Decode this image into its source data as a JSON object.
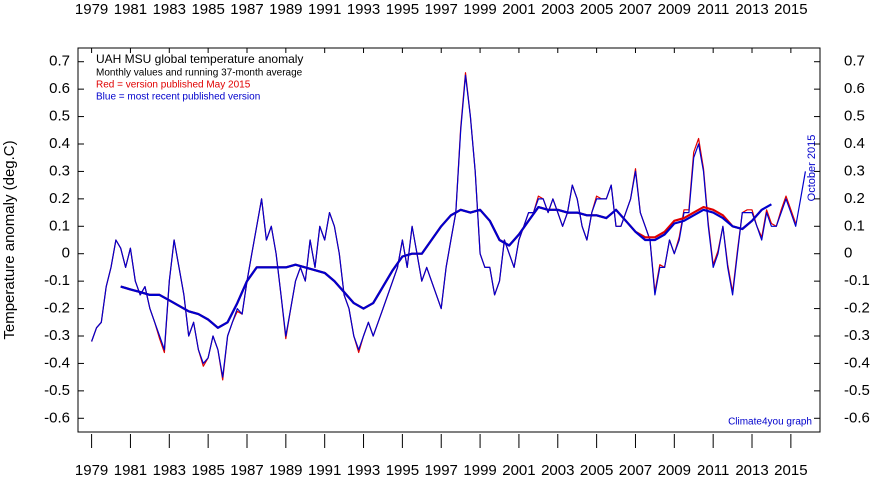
{
  "chart_data": {
    "type": "line",
    "title": "UAH MSU global temperature anomaly",
    "subtitle": "Monthly values and running 37-month average",
    "legend_lines": [
      {
        "text": "Red = version published May 2015",
        "color": "#e00000"
      },
      {
        "text": "Blue = most recent published version",
        "color": "#0000cc"
      }
    ],
    "y_label": "Temperature anomaly (deg.C)",
    "annotations": [
      "October 2015",
      "Climate4you graph"
    ],
    "xlim": [
      1978.3,
      2016.5
    ],
    "xticks": [
      1979,
      1981,
      1983,
      1985,
      1987,
      1989,
      1991,
      1993,
      1995,
      1997,
      1999,
      2001,
      2003,
      2005,
      2007,
      2009,
      2011,
      2013,
      2015
    ],
    "ylim": [
      -0.65,
      0.75
    ],
    "yticks": [
      -0.6,
      -0.5,
      -0.4,
      -0.3,
      -0.2,
      -0.1,
      0,
      0.1,
      0.2,
      0.3,
      0.4,
      0.5,
      0.6,
      0.7
    ],
    "series": [
      {
        "color": "#e00000",
        "width": 1.2,
        "x": [
          1979.0,
          1979.25,
          1979.5,
          1979.75,
          1980.0,
          1980.25,
          1980.5,
          1980.75,
          1981.0,
          1981.25,
          1981.5,
          1981.75,
          1982.0,
          1982.25,
          1982.5,
          1982.75,
          1983.0,
          1983.25,
          1983.5,
          1983.75,
          1984.0,
          1984.25,
          1984.5,
          1984.75,
          1985.0,
          1985.25,
          1985.5,
          1985.75,
          1986.0,
          1986.25,
          1986.5,
          1986.75,
          1987.0,
          1987.25,
          1987.5,
          1987.75,
          1988.0,
          1988.25,
          1988.5,
          1988.75,
          1989.0,
          1989.25,
          1989.5,
          1989.75,
          1990.0,
          1990.25,
          1990.5,
          1990.75,
          1991.0,
          1991.25,
          1991.5,
          1991.75,
          1992.0,
          1992.25,
          1992.5,
          1992.75,
          1993.0,
          1993.25,
          1993.5,
          1993.75,
          1994.0,
          1994.25,
          1994.5,
          1994.75,
          1995.0,
          1995.25,
          1995.5,
          1995.75,
          1996.0,
          1996.25,
          1996.5,
          1996.75,
          1997.0,
          1997.25,
          1997.5,
          1997.75,
          1998.0,
          1998.25,
          1998.5,
          1998.75,
          1999.0,
          1999.25,
          1999.5,
          1999.75,
          2000.0,
          2000.25,
          2000.5,
          2000.75,
          2001.0,
          2001.25,
          2001.5,
          2001.75,
          2002.0,
          2002.25,
          2002.5,
          2002.75,
          2003.0,
          2003.25,
          2003.5,
          2003.75,
          2004.0,
          2004.25,
          2004.5,
          2004.75,
          2005.0,
          2005.25,
          2005.5,
          2005.75,
          2006.0,
          2006.25,
          2006.5,
          2006.75,
          2007.0,
          2007.25,
          2007.5,
          2007.75,
          2008.0,
          2008.25,
          2008.5,
          2008.75,
          2009.0,
          2009.25,
          2009.5,
          2009.75,
          2010.0,
          2010.25,
          2010.5,
          2010.75,
          2011.0,
          2011.25,
          2011.5,
          2011.75,
          2012.0,
          2012.25,
          2012.5,
          2012.75,
          2013.0,
          2013.25,
          2013.5,
          2013.75,
          2014.0,
          2014.25,
          2014.5,
          2014.75,
          2015.0,
          2015.25
        ],
        "values": [
          -0.32,
          -0.27,
          -0.25,
          -0.12,
          -0.05,
          0.05,
          0.02,
          -0.05,
          0.02,
          -0.1,
          -0.15,
          -0.12,
          -0.2,
          -0.25,
          -0.31,
          -0.36,
          -0.1,
          0.05,
          -0.05,
          -0.15,
          -0.3,
          -0.25,
          -0.35,
          -0.41,
          -0.38,
          -0.3,
          -0.35,
          -0.46,
          -0.3,
          -0.25,
          -0.21,
          -0.22,
          -0.1,
          0.0,
          0.1,
          0.2,
          0.05,
          0.1,
          0.0,
          -0.15,
          -0.31,
          -0.2,
          -0.1,
          -0.05,
          -0.1,
          0.05,
          -0.05,
          0.1,
          0.05,
          0.15,
          0.1,
          0.0,
          -0.15,
          -0.2,
          -0.3,
          -0.36,
          -0.3,
          -0.25,
          -0.3,
          -0.25,
          -0.2,
          -0.15,
          -0.1,
          -0.05,
          0.05,
          -0.05,
          0.1,
          0.0,
          -0.1,
          -0.05,
          -0.1,
          -0.15,
          -0.2,
          -0.05,
          0.05,
          0.15,
          0.46,
          0.66,
          0.5,
          0.3,
          0.0,
          -0.05,
          -0.05,
          -0.15,
          -0.1,
          0.05,
          0.0,
          -0.05,
          0.05,
          0.1,
          0.15,
          0.15,
          0.21,
          0.2,
          0.15,
          0.2,
          0.15,
          0.1,
          0.15,
          0.25,
          0.2,
          0.1,
          0.05,
          0.15,
          0.21,
          0.2,
          0.2,
          0.25,
          0.1,
          0.1,
          0.15,
          0.2,
          0.31,
          0.15,
          0.1,
          0.05,
          -0.14,
          -0.04,
          -0.05,
          0.05,
          0.0,
          0.06,
          0.16,
          0.16,
          0.37,
          0.42,
          0.31,
          0.11,
          -0.04,
          0.01,
          0.1,
          -0.04,
          -0.14,
          0.01,
          0.15,
          0.16,
          0.16,
          0.1,
          0.06,
          0.16,
          0.11,
          0.1,
          0.16,
          0.21,
          0.16,
          0.11
        ]
      },
      {
        "color": "#0000cc",
        "width": 1.2,
        "x": [
          1979.0,
          1979.25,
          1979.5,
          1979.75,
          1980.0,
          1980.25,
          1980.5,
          1980.75,
          1981.0,
          1981.25,
          1981.5,
          1981.75,
          1982.0,
          1982.25,
          1982.5,
          1982.75,
          1983.0,
          1983.25,
          1983.5,
          1983.75,
          1984.0,
          1984.25,
          1984.5,
          1984.75,
          1985.0,
          1985.25,
          1985.5,
          1985.75,
          1986.0,
          1986.25,
          1986.5,
          1986.75,
          1987.0,
          1987.25,
          1987.5,
          1987.75,
          1988.0,
          1988.25,
          1988.5,
          1988.75,
          1989.0,
          1989.25,
          1989.5,
          1989.75,
          1990.0,
          1990.25,
          1990.5,
          1990.75,
          1991.0,
          1991.25,
          1991.5,
          1991.75,
          1992.0,
          1992.25,
          1992.5,
          1992.75,
          1993.0,
          1993.25,
          1993.5,
          1993.75,
          1994.0,
          1994.25,
          1994.5,
          1994.75,
          1995.0,
          1995.25,
          1995.5,
          1995.75,
          1996.0,
          1996.25,
          1996.5,
          1996.75,
          1997.0,
          1997.25,
          1997.5,
          1997.75,
          1998.0,
          1998.25,
          1998.5,
          1998.75,
          1999.0,
          1999.25,
          1999.5,
          1999.75,
          2000.0,
          2000.25,
          2000.5,
          2000.75,
          2001.0,
          2001.25,
          2001.5,
          2001.75,
          2002.0,
          2002.25,
          2002.5,
          2002.75,
          2003.0,
          2003.25,
          2003.5,
          2003.75,
          2004.0,
          2004.25,
          2004.5,
          2004.75,
          2005.0,
          2005.25,
          2005.5,
          2005.75,
          2006.0,
          2006.25,
          2006.5,
          2006.75,
          2007.0,
          2007.25,
          2007.5,
          2007.75,
          2008.0,
          2008.25,
          2008.5,
          2008.75,
          2009.0,
          2009.25,
          2009.5,
          2009.75,
          2010.0,
          2010.25,
          2010.5,
          2010.75,
          2011.0,
          2011.25,
          2011.5,
          2011.75,
          2012.0,
          2012.25,
          2012.5,
          2012.75,
          2013.0,
          2013.25,
          2013.5,
          2013.75,
          2014.0,
          2014.25,
          2014.5,
          2014.75,
          2015.0,
          2015.25,
          2015.5,
          2015.75
        ],
        "values": [
          -0.32,
          -0.27,
          -0.25,
          -0.12,
          -0.05,
          0.05,
          0.02,
          -0.05,
          0.02,
          -0.1,
          -0.15,
          -0.12,
          -0.2,
          -0.25,
          -0.3,
          -0.35,
          -0.1,
          0.05,
          -0.05,
          -0.15,
          -0.3,
          -0.25,
          -0.35,
          -0.4,
          -0.38,
          -0.3,
          -0.35,
          -0.45,
          -0.3,
          -0.25,
          -0.2,
          -0.22,
          -0.1,
          0.0,
          0.1,
          0.2,
          0.05,
          0.1,
          0.0,
          -0.15,
          -0.3,
          -0.2,
          -0.1,
          -0.05,
          -0.1,
          0.05,
          -0.05,
          0.1,
          0.05,
          0.15,
          0.1,
          0.0,
          -0.15,
          -0.2,
          -0.3,
          -0.35,
          -0.3,
          -0.25,
          -0.3,
          -0.25,
          -0.2,
          -0.15,
          -0.1,
          -0.05,
          0.05,
          -0.05,
          0.1,
          0.0,
          -0.1,
          -0.05,
          -0.1,
          -0.15,
          -0.2,
          -0.05,
          0.05,
          0.15,
          0.45,
          0.65,
          0.5,
          0.3,
          0.0,
          -0.05,
          -0.05,
          -0.15,
          -0.1,
          0.05,
          0.0,
          -0.05,
          0.05,
          0.1,
          0.15,
          0.15,
          0.2,
          0.2,
          0.15,
          0.2,
          0.15,
          0.1,
          0.15,
          0.25,
          0.2,
          0.1,
          0.05,
          0.15,
          0.2,
          0.2,
          0.2,
          0.25,
          0.1,
          0.1,
          0.15,
          0.2,
          0.3,
          0.15,
          0.1,
          0.05,
          -0.15,
          -0.05,
          -0.05,
          0.05,
          0.0,
          0.05,
          0.15,
          0.15,
          0.35,
          0.4,
          0.3,
          0.1,
          -0.05,
          0.0,
          0.1,
          -0.05,
          -0.15,
          0.0,
          0.15,
          0.15,
          0.15,
          0.1,
          0.05,
          0.15,
          0.1,
          0.1,
          0.15,
          0.2,
          0.15,
          0.1,
          0.2,
          0.3
        ]
      },
      {
        "color": "#e00000",
        "width": 2.2,
        "x": [
          1980.5,
          1981.0,
          1981.5,
          1982.0,
          1982.5,
          1983.0,
          1983.5,
          1984.0,
          1984.5,
          1985.0,
          1985.5,
          1986.0,
          1986.5,
          1987.0,
          1987.5,
          1988.0,
          1988.5,
          1989.0,
          1989.5,
          1990.0,
          1990.5,
          1991.0,
          1991.5,
          1992.0,
          1992.5,
          1993.0,
          1993.5,
          1994.0,
          1994.5,
          1995.0,
          1995.5,
          1996.0,
          1996.5,
          1997.0,
          1997.5,
          1998.0,
          1998.5,
          1999.0,
          1999.5,
          2000.0,
          2000.5,
          2001.0,
          2001.5,
          2002.0,
          2002.5,
          2003.0,
          2003.5,
          2004.0,
          2004.5,
          2005.0,
          2005.5,
          2006.0,
          2006.5,
          2007.0,
          2007.5,
          2008.0,
          2008.5,
          2009.0,
          2009.5,
          2010.0,
          2010.5,
          2011.0,
          2011.5,
          2012.0,
          2012.5,
          2013.0,
          2013.5
        ],
        "values": [
          -0.12,
          -0.13,
          -0.14,
          -0.15,
          -0.15,
          -0.17,
          -0.19,
          -0.21,
          -0.22,
          -0.24,
          -0.27,
          -0.25,
          -0.18,
          -0.1,
          -0.05,
          -0.05,
          -0.05,
          -0.05,
          -0.04,
          -0.05,
          -0.06,
          -0.07,
          -0.1,
          -0.14,
          -0.18,
          -0.2,
          -0.18,
          -0.12,
          -0.06,
          -0.01,
          0.0,
          0.0,
          0.05,
          0.1,
          0.14,
          0.16,
          0.15,
          0.16,
          0.12,
          0.05,
          0.03,
          0.07,
          0.12,
          0.17,
          0.16,
          0.16,
          0.15,
          0.15,
          0.14,
          0.14,
          0.13,
          0.16,
          0.12,
          0.08,
          0.06,
          0.06,
          0.08,
          0.12,
          0.13,
          0.15,
          0.17,
          0.16,
          0.14,
          0.1,
          0.09,
          0.12,
          0.16
        ]
      },
      {
        "color": "#0000cc",
        "width": 2.2,
        "x": [
          1980.5,
          1981.0,
          1981.5,
          1982.0,
          1982.5,
          1983.0,
          1983.5,
          1984.0,
          1984.5,
          1985.0,
          1985.5,
          1986.0,
          1986.5,
          1987.0,
          1987.5,
          1988.0,
          1988.5,
          1989.0,
          1989.5,
          1990.0,
          1990.5,
          1991.0,
          1991.5,
          1992.0,
          1992.5,
          1993.0,
          1993.5,
          1994.0,
          1994.5,
          1995.0,
          1995.5,
          1996.0,
          1996.5,
          1997.0,
          1997.5,
          1998.0,
          1998.5,
          1999.0,
          1999.5,
          2000.0,
          2000.5,
          2001.0,
          2001.5,
          2002.0,
          2002.5,
          2003.0,
          2003.5,
          2004.0,
          2004.5,
          2005.0,
          2005.5,
          2006.0,
          2006.5,
          2007.0,
          2007.5,
          2008.0,
          2008.5,
          2009.0,
          2009.5,
          2010.0,
          2010.5,
          2011.0,
          2011.5,
          2012.0,
          2012.5,
          2013.0,
          2013.5,
          2014.0
        ],
        "values": [
          -0.12,
          -0.13,
          -0.14,
          -0.15,
          -0.15,
          -0.17,
          -0.19,
          -0.21,
          -0.22,
          -0.24,
          -0.27,
          -0.25,
          -0.18,
          -0.1,
          -0.05,
          -0.05,
          -0.05,
          -0.05,
          -0.04,
          -0.05,
          -0.06,
          -0.07,
          -0.1,
          -0.14,
          -0.18,
          -0.2,
          -0.18,
          -0.12,
          -0.06,
          -0.01,
          0.0,
          0.0,
          0.05,
          0.1,
          0.14,
          0.16,
          0.15,
          0.16,
          0.12,
          0.05,
          0.03,
          0.07,
          0.12,
          0.17,
          0.16,
          0.16,
          0.15,
          0.15,
          0.14,
          0.14,
          0.13,
          0.16,
          0.12,
          0.08,
          0.05,
          0.05,
          0.07,
          0.11,
          0.12,
          0.14,
          0.16,
          0.15,
          0.13,
          0.1,
          0.09,
          0.12,
          0.16,
          0.18
        ]
      }
    ]
  }
}
